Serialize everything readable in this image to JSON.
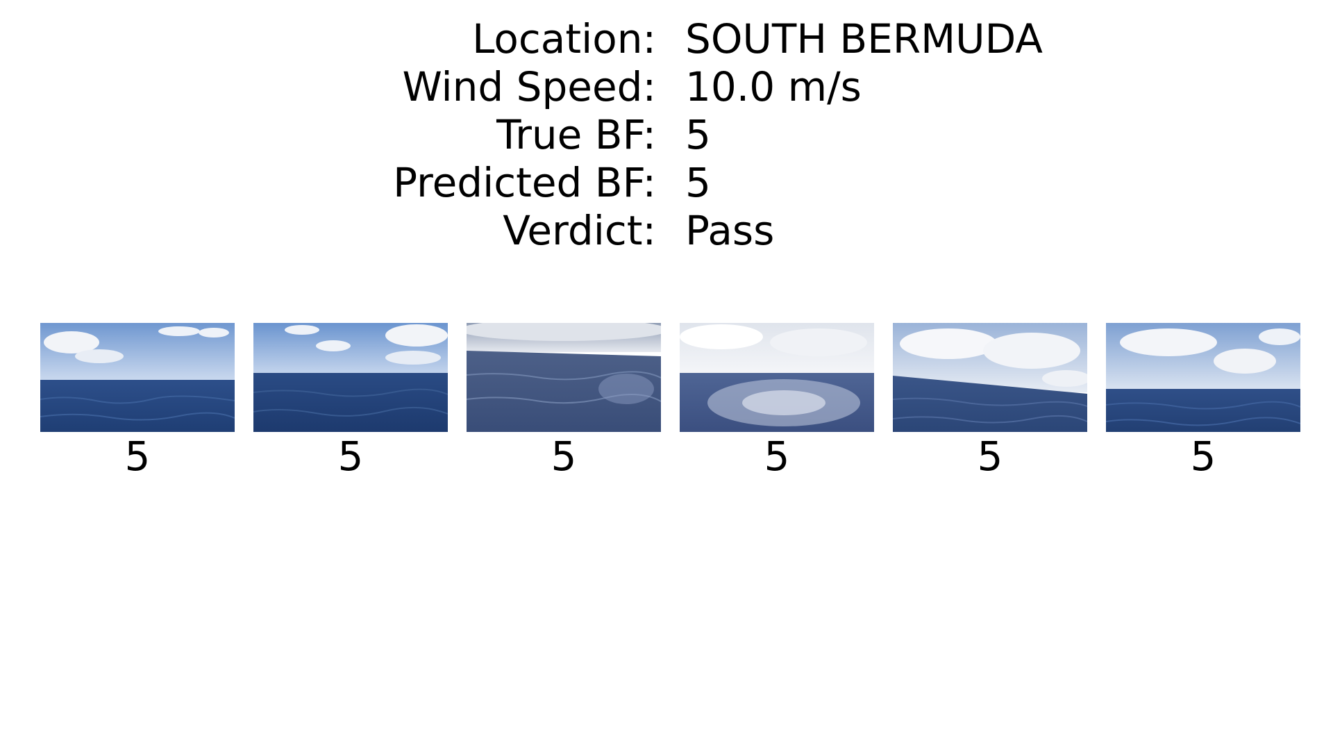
{
  "info": [
    {
      "label": "Location:",
      "value": "SOUTH BERMUDA"
    },
    {
      "label": "Wind Speed:",
      "value": "10.0 m/s"
    },
    {
      "label": "True BF:",
      "value": "5"
    },
    {
      "label": "Predicted BF:",
      "value": "5"
    },
    {
      "label": "Verdict:",
      "value": "Pass"
    }
  ],
  "thumbnails": [
    {
      "label": "5"
    },
    {
      "label": "5"
    },
    {
      "label": "5"
    },
    {
      "label": "5"
    },
    {
      "label": "5"
    },
    {
      "label": "5"
    }
  ],
  "colors": {
    "sky_top": "#6f97d0",
    "sky_bottom": "#c9d8ee",
    "sea_dark": "#1f3e74",
    "sea_mid": "#2d4f8a",
    "cloud": "#f2f4f8"
  }
}
